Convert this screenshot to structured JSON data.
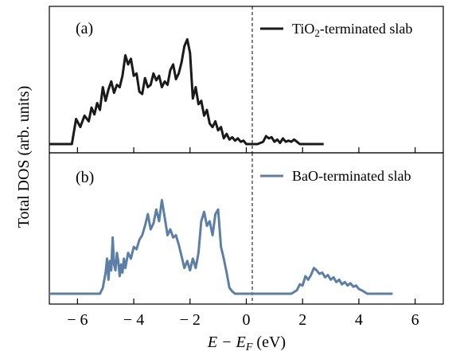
{
  "figure": {
    "ylabel": "Total DOS (arb. units)",
    "xlabel_parts": [
      "E",
      " − E",
      "F",
      " (eV)"
    ]
  },
  "chart_data": [
    {
      "type": "line",
      "panel_label": "(a)",
      "legend": {
        "text_main": "TiO",
        "text_sub": "2",
        "text_rest": "-terminated slab",
        "placement": "top-right"
      },
      "series": [
        {
          "name": "TiO2-terminated slab",
          "color": "#1a1a1a",
          "x": [
            -7,
            -6.2,
            -6.05,
            -5.9,
            -5.75,
            -5.6,
            -5.5,
            -5.4,
            -5.3,
            -5.2,
            -5.1,
            -5.0,
            -4.9,
            -4.8,
            -4.7,
            -4.6,
            -4.5,
            -4.4,
            -4.3,
            -4.2,
            -4.1,
            -4.0,
            -3.9,
            -3.8,
            -3.7,
            -3.6,
            -3.5,
            -3.4,
            -3.3,
            -3.2,
            -3.1,
            -3.0,
            -2.9,
            -2.8,
            -2.7,
            -2.6,
            -2.5,
            -2.4,
            -2.3,
            -2.2,
            -2.1,
            -2.0,
            -1.9,
            -1.8,
            -1.7,
            -1.6,
            -1.5,
            -1.4,
            -1.3,
            -1.2,
            -1.1,
            -1.0,
            -0.9,
            -0.8,
            -0.7,
            -0.6,
            -0.5,
            -0.4,
            -0.3,
            -0.2,
            -0.1,
            0.0,
            0.2,
            0.4,
            0.6,
            0.7,
            0.8,
            0.9,
            1.0,
            1.1,
            1.2,
            1.3,
            1.4,
            1.5,
            1.6,
            1.7,
            1.8,
            1.9,
            2.0,
            2.2,
            2.75
          ],
          "values": [
            0.0,
            0.0,
            0.22,
            0.15,
            0.25,
            0.2,
            0.32,
            0.26,
            0.36,
            0.3,
            0.5,
            0.38,
            0.48,
            0.55,
            0.45,
            0.52,
            0.5,
            0.6,
            0.78,
            0.7,
            0.75,
            0.6,
            0.62,
            0.46,
            0.44,
            0.58,
            0.5,
            0.52,
            0.62,
            0.56,
            0.6,
            0.5,
            0.55,
            0.52,
            0.65,
            0.7,
            0.57,
            0.62,
            0.72,
            0.86,
            0.92,
            0.8,
            0.4,
            0.5,
            0.35,
            0.38,
            0.25,
            0.3,
            0.18,
            0.15,
            0.2,
            0.12,
            0.15,
            0.05,
            0.09,
            0.04,
            0.06,
            0.03,
            0.05,
            0.02,
            0.03,
            0.0,
            0.0,
            0.0,
            0.02,
            0.07,
            0.05,
            0.06,
            0.02,
            0.04,
            0.01,
            0.05,
            0.02,
            0.03,
            0.02,
            0.04,
            0.02,
            0.0,
            0.0,
            0.0,
            0.0
          ]
        }
      ],
      "xlim": [
        -7,
        7
      ],
      "ylim": [
        -0.05,
        1.0
      ]
    },
    {
      "type": "line",
      "panel_label": "(b)",
      "legend": {
        "text_main": "BaO-terminated slab",
        "text_sub": "",
        "text_rest": "",
        "placement": "top-right"
      },
      "series": [
        {
          "name": "BaO-terminated slab",
          "color": "#5b7fa6",
          "x": [
            -7,
            -5.2,
            -5.1,
            -5.0,
            -4.95,
            -4.9,
            -4.85,
            -4.8,
            -4.75,
            -4.7,
            -4.65,
            -4.6,
            -4.55,
            -4.5,
            -4.45,
            -4.4,
            -4.35,
            -4.3,
            -4.2,
            -4.1,
            -4.0,
            -3.9,
            -3.8,
            -3.7,
            -3.6,
            -3.5,
            -3.4,
            -3.3,
            -3.2,
            -3.1,
            -3.0,
            -2.9,
            -2.8,
            -2.7,
            -2.6,
            -2.5,
            -2.4,
            -2.3,
            -2.2,
            -2.1,
            -2.0,
            -1.9,
            -1.8,
            -1.7,
            -1.6,
            -1.5,
            -1.4,
            -1.3,
            -1.2,
            -1.1,
            -1.0,
            -0.9,
            -0.8,
            -0.7,
            -0.6,
            -0.5,
            -0.4,
            -0.3,
            -0.2,
            -0.1,
            0.0,
            0.2,
            1.6,
            1.8,
            1.9,
            2.0,
            2.1,
            2.2,
            2.3,
            2.4,
            2.5,
            2.6,
            2.7,
            2.8,
            2.9,
            3.0,
            3.1,
            3.2,
            3.3,
            3.4,
            3.5,
            3.6,
            3.7,
            3.8,
            3.9,
            4.0,
            4.1,
            4.3,
            5.2
          ],
          "values": [
            0.0,
            0.0,
            0.05,
            0.18,
            0.3,
            0.12,
            0.28,
            0.2,
            0.48,
            0.25,
            0.2,
            0.35,
            0.28,
            0.15,
            0.25,
            0.18,
            0.3,
            0.22,
            0.35,
            0.3,
            0.4,
            0.38,
            0.46,
            0.5,
            0.58,
            0.68,
            0.55,
            0.6,
            0.72,
            0.62,
            0.8,
            0.65,
            0.5,
            0.55,
            0.48,
            0.5,
            0.42,
            0.32,
            0.22,
            0.28,
            0.2,
            0.3,
            0.22,
            0.35,
            0.62,
            0.7,
            0.58,
            0.62,
            0.5,
            0.68,
            0.72,
            0.4,
            0.3,
            0.18,
            0.05,
            0.02,
            0.0,
            0.0,
            0.0,
            0.0,
            0.0,
            0.0,
            0.0,
            0.03,
            0.08,
            0.07,
            0.15,
            0.12,
            0.16,
            0.22,
            0.2,
            0.17,
            0.18,
            0.14,
            0.16,
            0.12,
            0.14,
            0.1,
            0.12,
            0.08,
            0.1,
            0.07,
            0.09,
            0.06,
            0.07,
            0.04,
            0.03,
            0.0,
            0.0
          ]
        }
      ],
      "xlim": [
        -7,
        7
      ],
      "ylim": [
        -0.05,
        1.0
      ]
    }
  ],
  "xaxis": {
    "ticks": [
      -6,
      -4,
      -2,
      0,
      2,
      4,
      6
    ],
    "tick_labels": [
      "− 6",
      "− 4",
      "− 2",
      "0",
      "2",
      "4",
      "6"
    ]
  },
  "fermi_line_x": 0
}
